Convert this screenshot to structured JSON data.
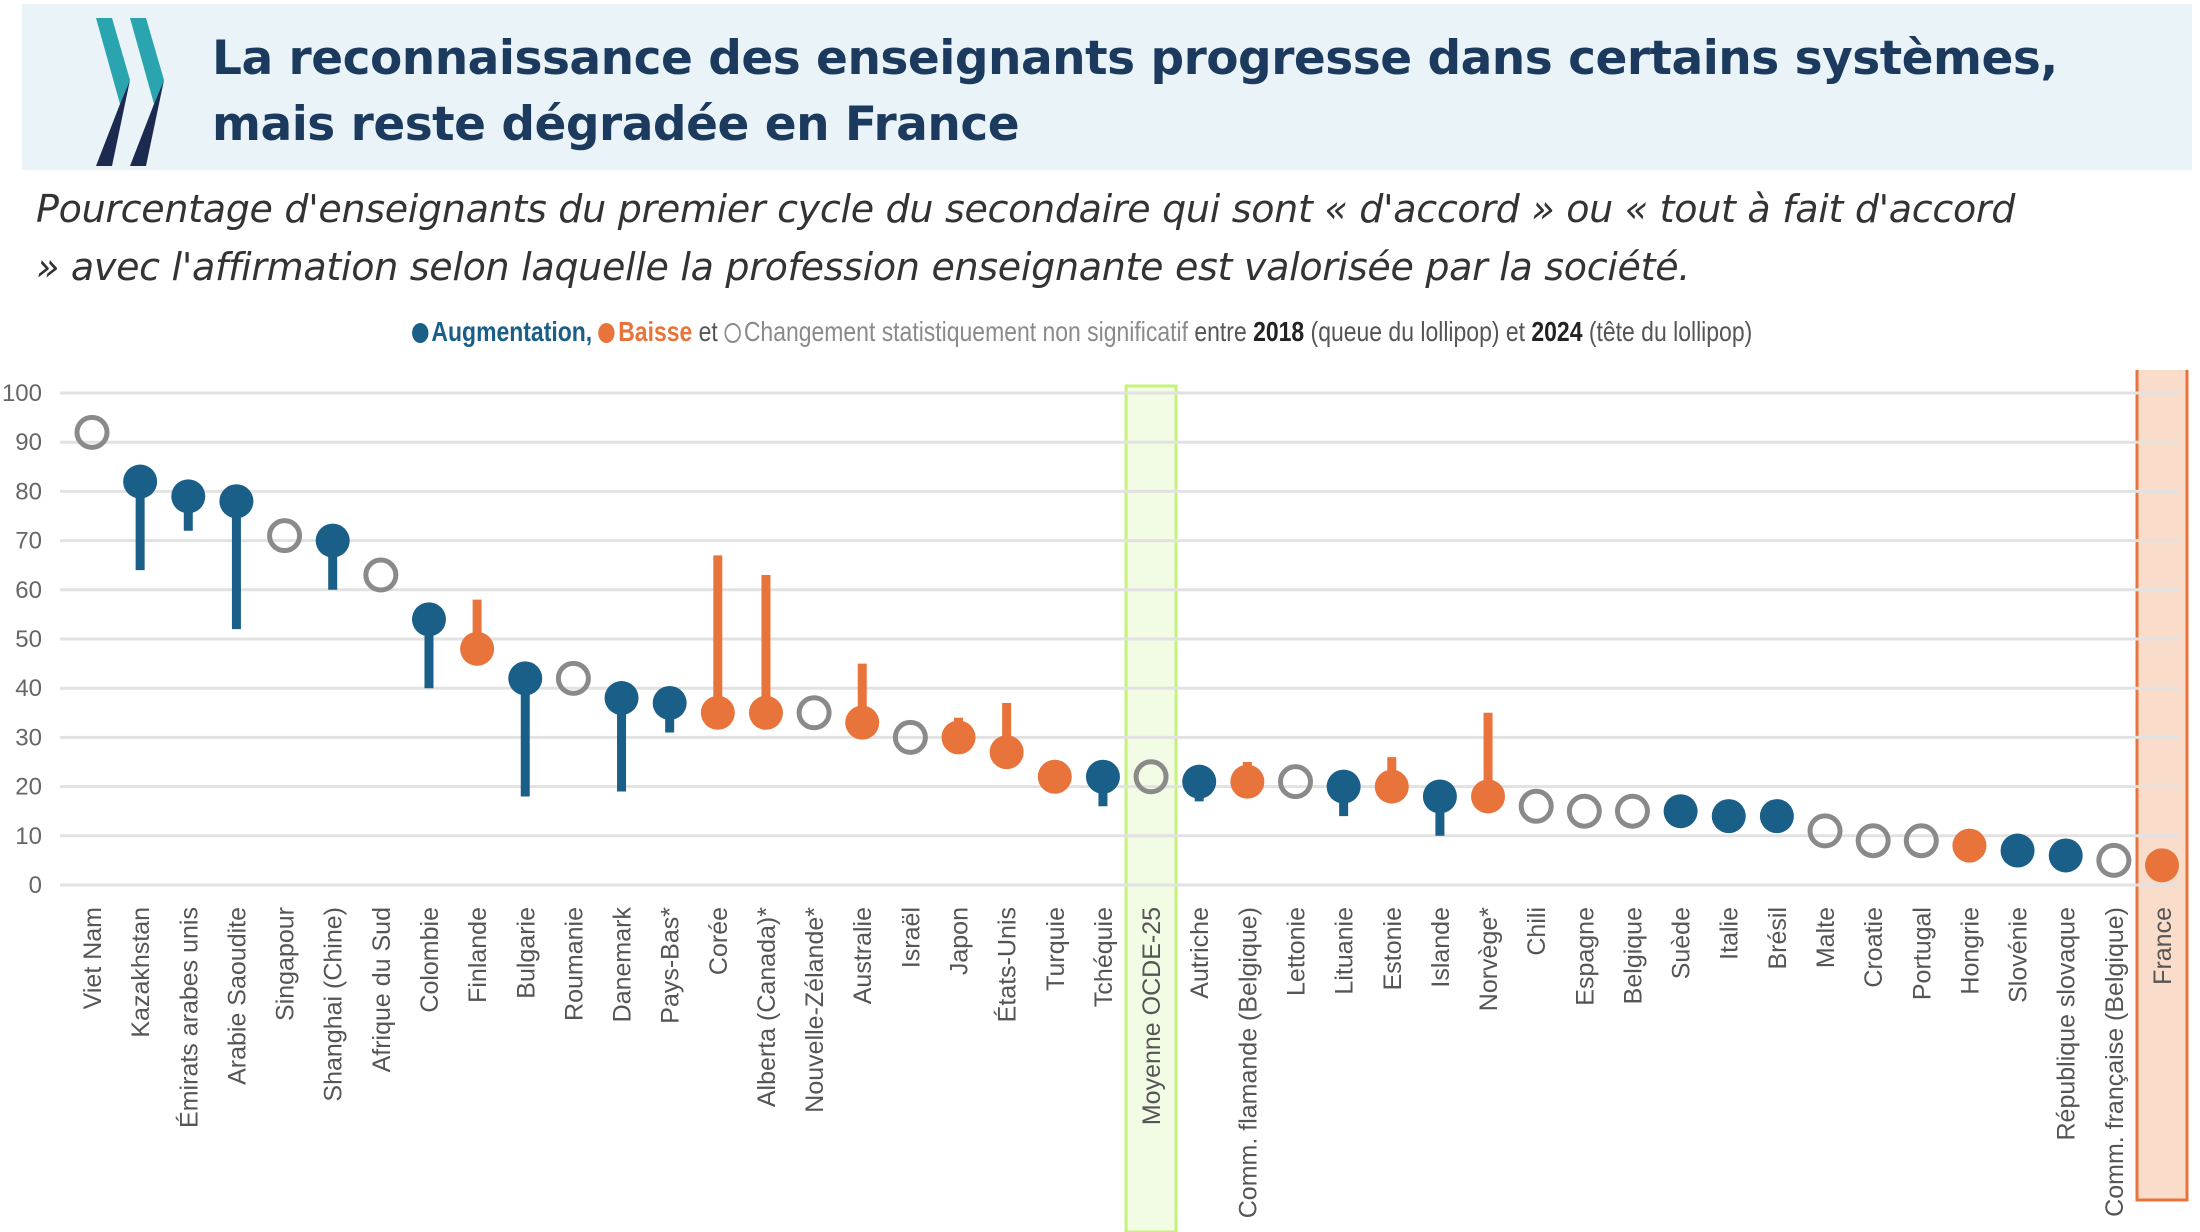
{
  "header": {
    "title_line1": "La reconnaissance des enseignants progresse dans certains systèmes,",
    "title_line2": "mais reste dégradée en France",
    "logo_icon": "oecd-chevron-logo",
    "colors": {
      "background": "#eaf4f8",
      "title": "#1b3a5e",
      "logo_teal": "#2aa5b0",
      "logo_navy": "#1b2a4e"
    }
  },
  "subtitle": {
    "line1": "Pourcentage d'enseignants du premier cycle du secondaire qui sont « d'accord » ou « tout à fait d'accord",
    "line2": "» avec l'affirmation selon laquelle la profession enseignante est valorisée par la société."
  },
  "legend": {
    "up_label": "Augmentation,",
    "down_label": "Baisse",
    "et1": "et",
    "ns_label": "Changement statistiquement non significatif",
    "entre": "entre",
    "year1": "2018",
    "year1_desc": "(queue du lollipop)",
    "et2": "et",
    "year2": "2024",
    "year2_desc": "(tête du lollipop)"
  },
  "chart_data": {
    "type": "lollipop",
    "title": "La reconnaissance des enseignants progresse dans certains systèmes, mais reste dégradée en France",
    "ylabel": "%",
    "ylim": [
      0,
      100
    ],
    "yticks": [
      0,
      10,
      20,
      30,
      40,
      50,
      60,
      70,
      80,
      90,
      100
    ],
    "grid": true,
    "legend_position": "top-center",
    "colors": {
      "up": "#1a5f87",
      "down": "#e8743b",
      "ns": "#8a8a8a",
      "avg_highlight": "#c6f27a",
      "france_highlight": "#e8743b"
    },
    "highlights": {
      "Moyenne OCDE-25": "green-band",
      "France": "orange-band"
    },
    "categories": [
      "Viet Nam",
      "Kazakhstan",
      "Émirats arabes unis",
      "Arabie Saoudite",
      "Singapour",
      "Shanghai (Chine)",
      "Afrique du Sud",
      "Colombie",
      "Finlande",
      "Bulgarie",
      "Roumanie",
      "Danemark",
      "Pays-Bas*",
      "Corée",
      "Alberta (Canada)*",
      "Nouvelle-Zélande*",
      "Australie",
      "Israël",
      "Japon",
      "États-Unis",
      "Turquie",
      "Tchéquie",
      "Moyenne OCDE-25",
      "Autriche",
      "Comm. flamande (Belgique)",
      "Lettonie",
      "Lituanie",
      "Estonie",
      "Islande",
      "Norvège*",
      "Chili",
      "Espagne",
      "Belgique",
      "Suède",
      "Italie",
      "Brésil",
      "Malte",
      "Croatie",
      "Portugal",
      "Hongrie",
      "Slovénie",
      "République slovaque",
      "Comm. française (Belgique)",
      "France"
    ],
    "series": [
      {
        "name": "2024",
        "values": [
          92,
          82,
          79,
          78,
          71,
          70,
          63,
          54,
          48,
          42,
          42,
          38,
          37,
          35,
          35,
          35,
          33,
          30,
          30,
          27,
          22,
          22,
          22,
          21,
          21,
          21,
          20,
          20,
          18,
          18,
          16,
          15,
          15,
          15,
          14,
          14,
          11,
          9,
          9,
          8,
          7,
          6,
          5,
          4
        ]
      },
      {
        "name": "2018",
        "values": [
          null,
          64,
          72,
          52,
          null,
          60,
          null,
          40,
          58,
          18,
          null,
          19,
          31,
          67,
          63,
          null,
          45,
          null,
          34,
          37,
          25,
          16,
          null,
          17,
          25,
          null,
          14,
          26,
          10,
          35,
          null,
          null,
          null,
          13,
          14,
          14,
          null,
          null,
          null,
          8,
          7,
          6,
          null,
          4
        ]
      }
    ],
    "change": [
      "ns",
      "up",
      "up",
      "up",
      "ns",
      "up",
      "ns",
      "up",
      "down",
      "up",
      "ns",
      "up",
      "up",
      "down",
      "down",
      "ns",
      "down",
      "ns",
      "down",
      "down",
      "down",
      "up",
      "ns",
      "up",
      "down",
      "ns",
      "up",
      "down",
      "up",
      "down",
      "ns",
      "ns",
      "ns",
      "up",
      "up",
      "up",
      "ns",
      "ns",
      "ns",
      "down",
      "up",
      "up",
      "ns",
      "down"
    ]
  }
}
